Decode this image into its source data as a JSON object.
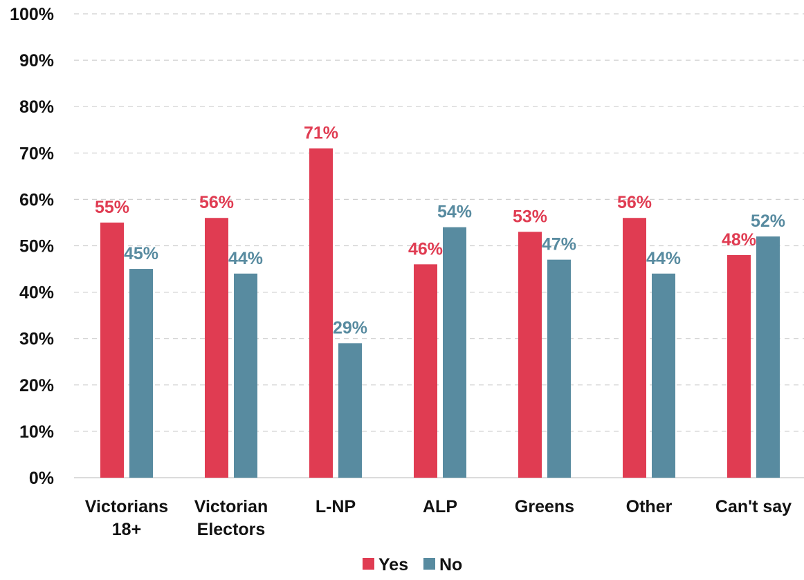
{
  "chart_data": {
    "type": "bar",
    "categories": [
      [
        "Victorians",
        "18+"
      ],
      [
        "Victorian",
        "Electors"
      ],
      [
        "L-NP"
      ],
      [
        "ALP"
      ],
      [
        "Greens"
      ],
      [
        "Other"
      ],
      [
        "Can't say"
      ]
    ],
    "series": [
      {
        "name": "Yes",
        "color": "#e03c52",
        "values": [
          55,
          56,
          71,
          46,
          53,
          56,
          48
        ],
        "labels": [
          "55%",
          "56%",
          "71%",
          "46%",
          "53%",
          "56%",
          "48%"
        ]
      },
      {
        "name": "No",
        "color": "#588ba0",
        "values": [
          45,
          44,
          29,
          54,
          47,
          44,
          52
        ],
        "labels": [
          "45%",
          "44%",
          "29%",
          "54%",
          "47%",
          "44%",
          "52%"
        ]
      }
    ],
    "ylim": [
      0,
      100
    ],
    "y_ticks": [
      0,
      10,
      20,
      30,
      40,
      50,
      60,
      70,
      80,
      90,
      100
    ],
    "y_tick_labels": [
      "0%",
      "10%",
      "20%",
      "30%",
      "40%",
      "50%",
      "60%",
      "70%",
      "80%",
      "90%",
      "100%"
    ],
    "grid": true,
    "legend_position": "bottom-center",
    "title": "",
    "xlabel": "",
    "ylabel": ""
  }
}
